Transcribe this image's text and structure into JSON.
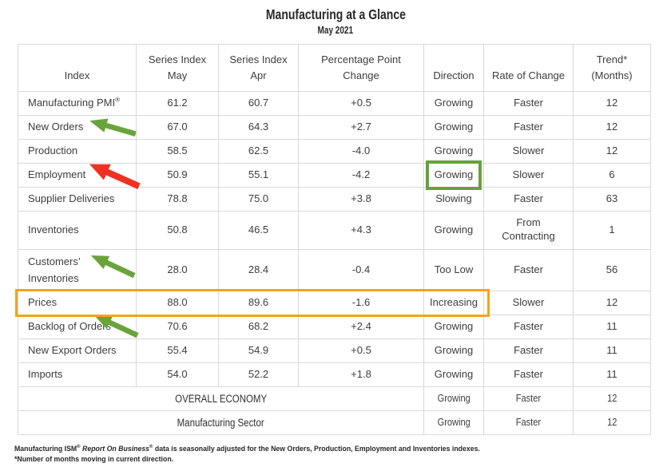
{
  "title": "Manufacturing at a Glance",
  "subtitle": "May 2021",
  "colors": {
    "green_arrow": "#6aa33c",
    "red_arrow": "#ee3124",
    "green_box": "#67a03e",
    "orange_box": "#f6a21d"
  },
  "table": {
    "headers": [
      "Index",
      "Series Index\nMay",
      "Series Index\nApr",
      "Percentage Point\nChange",
      "Direction",
      "Rate of Change",
      "Trend*\n(Months)"
    ],
    "rows": [
      {
        "index": "Manufacturing PMI",
        "index_sup": "®",
        "may": "61.2",
        "apr": "60.7",
        "change": "+0.5",
        "direction": "Growing",
        "rate": "Faster",
        "trend": "12"
      },
      {
        "index": "New Orders",
        "may": "67.0",
        "apr": "64.3",
        "change": "+2.7",
        "direction": "Growing",
        "rate": "Faster",
        "trend": "12",
        "arrow": "green"
      },
      {
        "index": "Production",
        "may": "58.5",
        "apr": "62.5",
        "change": "-4.0",
        "direction": "Growing",
        "rate": "Slower",
        "trend": "12"
      },
      {
        "index": "Employment",
        "may": "50.9",
        "apr": "55.1",
        "change": "-4.2",
        "direction": "Growing",
        "rate": "Slower",
        "trend": "6",
        "arrow": "red",
        "direction_boxed": true
      },
      {
        "index": "Supplier Deliveries",
        "may": "78.8",
        "apr": "75.0",
        "change": "+3.8",
        "direction": "Slowing",
        "rate": "Faster",
        "trend": "63"
      },
      {
        "index": "Inventories",
        "may": "50.8",
        "apr": "46.5",
        "change": "+4.3",
        "direction": "Growing",
        "rate": "From\nContracting",
        "trend": "1"
      },
      {
        "index": "Customers’\nInventories",
        "may": "28.0",
        "apr": "28.4",
        "change": "-0.4",
        "direction": "Too Low",
        "rate": "Faster",
        "trend": "56",
        "arrow": "green"
      },
      {
        "index": "Prices",
        "may": "88.0",
        "apr": "89.6",
        "change": "-1.6",
        "direction": "Increasing",
        "rate": "Slower",
        "trend": "12",
        "row_boxed": true
      },
      {
        "index": "Backlog of Orders",
        "may": "70.6",
        "apr": "68.2",
        "change": "+2.4",
        "direction": "Growing",
        "rate": "Faster",
        "trend": "11",
        "arrow": "green"
      },
      {
        "index": "New Export Orders",
        "may": "55.4",
        "apr": "54.9",
        "change": "+0.5",
        "direction": "Growing",
        "rate": "Faster",
        "trend": "11"
      },
      {
        "index": "Imports",
        "may": "54.0",
        "apr": "52.2",
        "change": "+1.8",
        "direction": "Growing",
        "rate": "Faster",
        "trend": "11"
      }
    ],
    "summary_rows": [
      {
        "label": "OVERALL ECONOMY",
        "direction": "Growing",
        "rate": "Faster",
        "trend": "12"
      },
      {
        "label": "Manufacturing Sector",
        "direction": "Growing",
        "rate": "Faster",
        "trend": "12"
      }
    ]
  },
  "footnotes": {
    "line1_prefix": "Manufacturing ISM",
    "line1_sup1": "®",
    "line1_italic": " Report On Business",
    "line1_sup2": "®",
    "line1_suffix": " data is seasonally adjusted for the New Orders, Production, Employment and Inventories indexes.",
    "line2": "*Number of months moving in current direction."
  }
}
